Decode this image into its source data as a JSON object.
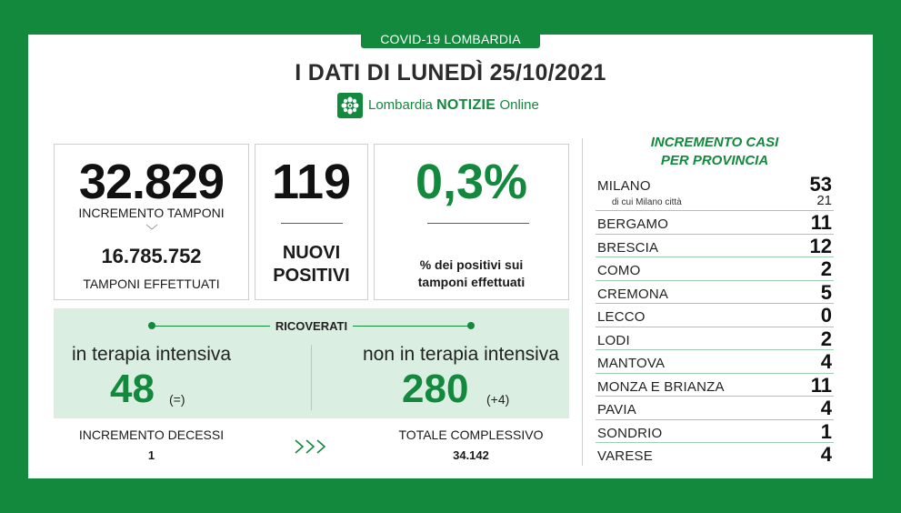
{
  "badge": "COVID-19 LOMBARDIA",
  "headline": "I DATI DI LUNEDÌ 25/10/2021",
  "brand": {
    "prefix": "Lombardia",
    "bold": "NOTIZIE",
    "suffix": "Online"
  },
  "tamponi": {
    "value": "32.829",
    "label": "INCREMENTO TAMPONI",
    "total": "16.785.752",
    "total_label": "TAMPONI EFFETTUATI"
  },
  "positivi": {
    "value": "119",
    "label_line1": "NUOVI",
    "label_line2": "POSITIVI"
  },
  "percent": {
    "value": "0,3%",
    "label_line1": "% dei positivi sui",
    "label_line2": "tamponi effettuati"
  },
  "ricoverati": {
    "title": "RICOVERATI",
    "intensiva": {
      "label": "in terapia intensiva",
      "value": "48",
      "delta": "(=)"
    },
    "non_intensiva": {
      "label": "non in terapia intensiva",
      "value": "280",
      "delta": "(+4)"
    }
  },
  "decessi": {
    "label": "INCREMENTO DECESSI",
    "value": "1"
  },
  "totale": {
    "label": "TOTALE COMPLESSIVO",
    "value": "34.142"
  },
  "province": {
    "title_line1": "INCREMENTO CASI",
    "title_line2": "PER PROVINCIA",
    "milano": {
      "name": "MILANO",
      "value": "53",
      "sub_label": "di cui Milano città",
      "sub_value": "21"
    },
    "items": [
      {
        "name": "BERGAMO",
        "value": "11"
      },
      {
        "name": "BRESCIA",
        "value": "12"
      },
      {
        "name": "COMO",
        "value": "2"
      },
      {
        "name": "CREMONA",
        "value": "5"
      },
      {
        "name": "LECCO",
        "value": "0"
      },
      {
        "name": "LODI",
        "value": "2"
      },
      {
        "name": "MANTOVA",
        "value": "4"
      },
      {
        "name": "MONZA E BRIANZA",
        "value": "11"
      },
      {
        "name": "PAVIA",
        "value": "4"
      },
      {
        "name": "SONDRIO",
        "value": "1"
      },
      {
        "name": "VARESE",
        "value": "4"
      }
    ]
  },
  "colors": {
    "brand_green": "#12893d",
    "light_green": "#dbeee2"
  }
}
